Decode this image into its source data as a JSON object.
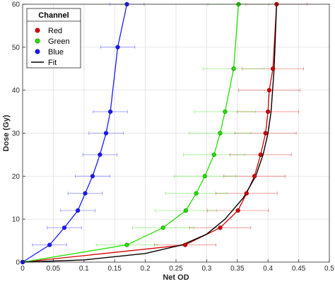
{
  "chart_data": {
    "type": "scatter",
    "title": "",
    "xlabel": "Net OD",
    "ylabel": "Dose (Gy)",
    "xlim": [
      0,
      0.5
    ],
    "ylim": [
      0,
      60
    ],
    "xticks": [
      0,
      0.05,
      0.1,
      0.15,
      0.2,
      0.25,
      0.3,
      0.35,
      0.4,
      0.45,
      0.5
    ],
    "xtick_labels": [
      "0",
      "0.05",
      "0.1",
      "0.15",
      "0.2",
      "0.25",
      "0.3",
      "0.35",
      "0.4",
      "0.45",
      "0.5"
    ],
    "yticks": [
      0,
      10,
      20,
      30,
      40,
      50,
      60
    ],
    "ytick_labels": [
      "0",
      "10",
      "20",
      "30",
      "40",
      "50",
      "60"
    ],
    "grid": true,
    "legend": {
      "title": "Channel",
      "position": "top-left",
      "entries": [
        "Red",
        "Green",
        "Blue",
        "Fit"
      ]
    },
    "series": [
      {
        "name": "Red",
        "color": "#d40000",
        "marker": "circle",
        "y": [
          0,
          4,
          8,
          12,
          16,
          20,
          25,
          30,
          35,
          40,
          45,
          60
        ],
        "x": [
          0,
          0.265,
          0.322,
          0.351,
          0.365,
          0.378,
          0.388,
          0.396,
          0.4,
          0.402,
          0.408,
          0.414
        ],
        "xerr": [
          0,
          0.05,
          0.05,
          0.05,
          0.05,
          0.05,
          0.05,
          0.05,
          0.05,
          0.05,
          0.05,
          0.05
        ]
      },
      {
        "name": "Green",
        "color": "#22e000",
        "marker": "circle",
        "y": [
          0,
          4,
          8,
          12,
          16,
          20,
          25,
          30,
          35,
          45,
          60
        ],
        "x": [
          0,
          0.17,
          0.229,
          0.266,
          0.283,
          0.297,
          0.312,
          0.322,
          0.33,
          0.344,
          0.352
        ],
        "xerr": [
          0,
          0.05,
          0.05,
          0.05,
          0.05,
          0.05,
          0.05,
          0.05,
          0.05,
          0.05,
          0.05
        ]
      },
      {
        "name": "Blue",
        "color": "#1a1aff",
        "marker": "circle",
        "y": [
          0,
          4,
          8,
          12,
          16,
          20,
          25,
          30,
          35,
          50,
          60
        ],
        "x": [
          0,
          0.044,
          0.068,
          0.09,
          0.102,
          0.114,
          0.126,
          0.136,
          0.143,
          0.155,
          0.17
        ],
        "xerr": [
          0,
          0.028,
          0.028,
          0.028,
          0.028,
          0.028,
          0.028,
          0.028,
          0.028,
          0.028,
          0.028
        ]
      },
      {
        "name": "Fit",
        "color": "#000000",
        "type": "line",
        "x": [
          0,
          0.1,
          0.2,
          0.26,
          0.3,
          0.33,
          0.36,
          0.38,
          0.392,
          0.4,
          0.405,
          0.41,
          0.414
        ],
        "y": [
          0,
          0.5,
          2,
          4,
          6.5,
          10,
          15,
          20,
          25,
          30,
          35,
          45,
          60
        ]
      }
    ]
  }
}
